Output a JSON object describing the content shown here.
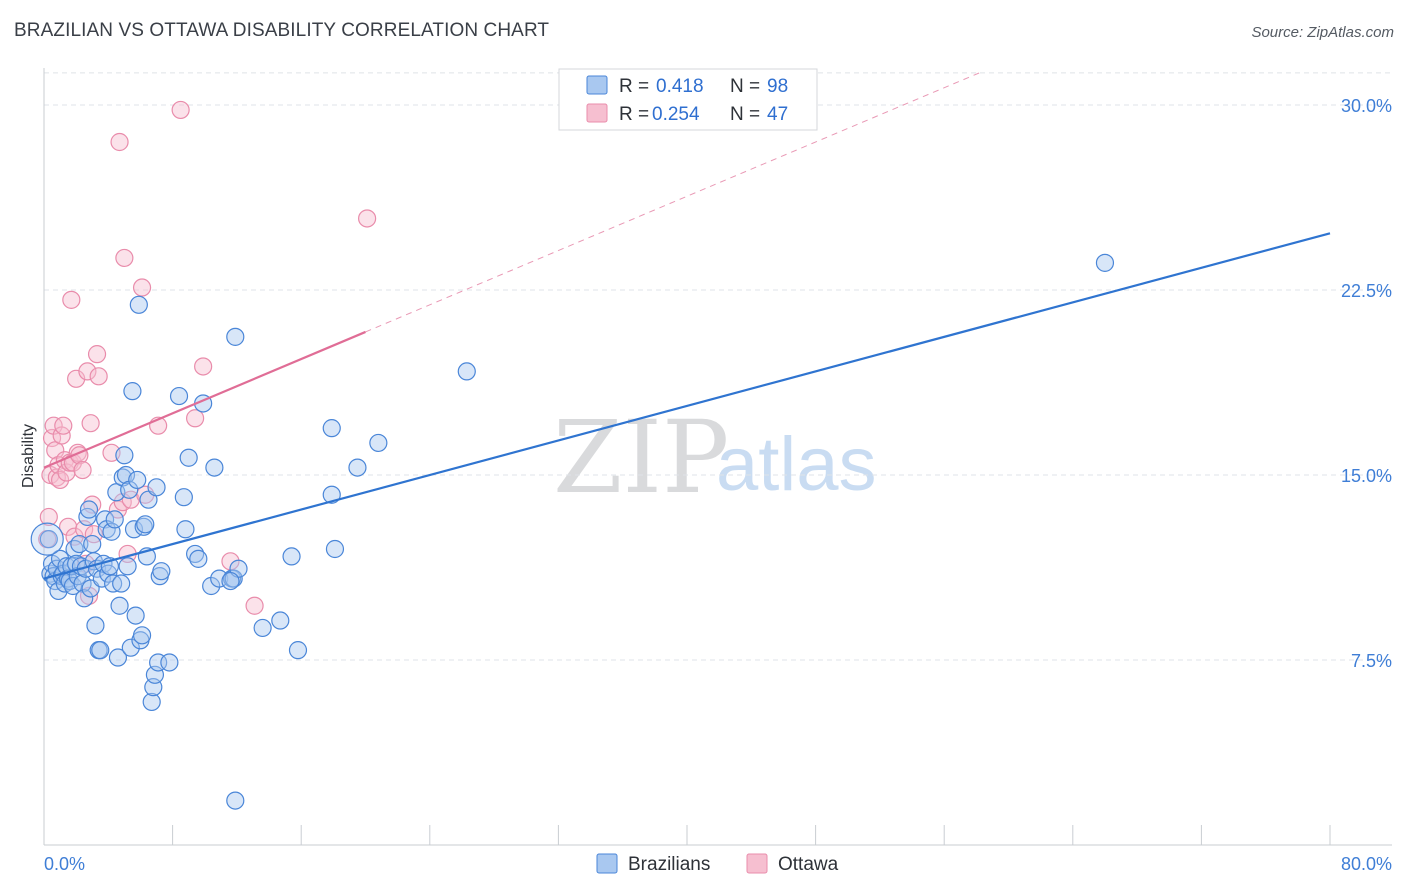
{
  "title": "BRAZILIAN VS OTTAWA DISABILITY CORRELATION CHART",
  "source": "Source: ZipAtlas.com",
  "watermark": {
    "zip": "ZIP",
    "atlas": "atlas"
  },
  "colors": {
    "blue": "#4a86d8",
    "blue_fill": "#a9c8f0",
    "blue_line": "#2f74d0",
    "pink": "#e98cab",
    "pink_fill": "#f6bfd0",
    "pink_line": "#e06d96",
    "grid": "#dfe3e8",
    "axis_text": "#3f7ed6"
  },
  "legend": {
    "rows": [
      {
        "r_label": "R =",
        "r_value": "0.418",
        "n_label": "N =",
        "n_value": "98"
      },
      {
        "r_label": "R =",
        "r_value": "0.254",
        "n_label": "N =",
        "n_value": "47"
      }
    ]
  },
  "bottom_legend": [
    "Brazilians",
    "Ottawa"
  ],
  "chart_data": {
    "type": "scatter",
    "title": "BRAZILIAN VS OTTAWA DISABILITY CORRELATION CHART",
    "xlabel": "",
    "ylabel": "Disability",
    "xlim": [
      0,
      80
    ],
    "ylim": [
      0,
      31.5
    ],
    "x_tick_labels": [
      "0.0%",
      "80.0%"
    ],
    "y_ticks": [
      7.5,
      15.0,
      22.5,
      30.0
    ],
    "y_tick_labels": [
      "7.5%",
      "15.0%",
      "22.5%",
      "30.0%"
    ],
    "series": [
      {
        "name": "Brazilians",
        "r": 0.418,
        "n": 98,
        "trend": {
          "x": [
            0,
            80
          ],
          "y": [
            10.8,
            24.8
          ]
        },
        "points": [
          [
            0.3,
            12.4
          ],
          [
            0.4,
            11.0
          ],
          [
            0.5,
            11.4
          ],
          [
            0.6,
            10.9
          ],
          [
            0.7,
            10.7
          ],
          [
            0.8,
            11.2
          ],
          [
            0.9,
            10.3
          ],
          [
            1.0,
            11.6
          ],
          [
            1.1,
            10.9
          ],
          [
            1.2,
            11.0
          ],
          [
            1.3,
            10.6
          ],
          [
            1.4,
            11.3
          ],
          [
            1.5,
            10.8
          ],
          [
            1.6,
            10.7
          ],
          [
            1.7,
            11.3
          ],
          [
            1.8,
            10.5
          ],
          [
            1.9,
            12.0
          ],
          [
            2.0,
            11.4
          ],
          [
            2.1,
            10.9
          ],
          [
            2.2,
            12.2
          ],
          [
            2.3,
            11.3
          ],
          [
            2.4,
            10.6
          ],
          [
            2.5,
            10.0
          ],
          [
            2.6,
            11.2
          ],
          [
            2.7,
            13.3
          ],
          [
            2.8,
            13.6
          ],
          [
            2.9,
            10.4
          ],
          [
            3.0,
            12.2
          ],
          [
            3.1,
            11.5
          ],
          [
            3.2,
            8.9
          ],
          [
            3.3,
            11.2
          ],
          [
            3.4,
            7.9
          ],
          [
            3.5,
            7.9
          ],
          [
            3.6,
            10.8
          ],
          [
            3.7,
            11.4
          ],
          [
            3.8,
            13.2
          ],
          [
            3.9,
            12.8
          ],
          [
            4.0,
            11.0
          ],
          [
            4.1,
            11.3
          ],
          [
            4.2,
            12.7
          ],
          [
            4.3,
            10.6
          ],
          [
            4.4,
            13.2
          ],
          [
            4.5,
            14.3
          ],
          [
            4.6,
            7.6
          ],
          [
            4.7,
            9.7
          ],
          [
            4.8,
            10.6
          ],
          [
            4.9,
            14.9
          ],
          [
            5.0,
            15.8
          ],
          [
            5.1,
            15.0
          ],
          [
            5.2,
            11.3
          ],
          [
            5.3,
            14.4
          ],
          [
            5.4,
            8.0
          ],
          [
            5.5,
            18.4
          ],
          [
            5.6,
            12.8
          ],
          [
            5.7,
            9.3
          ],
          [
            5.8,
            14.8
          ],
          [
            5.9,
            21.9
          ],
          [
            6.0,
            8.3
          ],
          [
            6.1,
            8.5
          ],
          [
            6.2,
            12.9
          ],
          [
            6.3,
            13.0
          ],
          [
            6.4,
            11.7
          ],
          [
            6.5,
            14.0
          ],
          [
            6.7,
            5.8
          ],
          [
            6.8,
            6.4
          ],
          [
            6.9,
            6.9
          ],
          [
            7.0,
            14.5
          ],
          [
            7.1,
            7.4
          ],
          [
            7.2,
            10.9
          ],
          [
            7.3,
            11.1
          ],
          [
            7.8,
            7.4
          ],
          [
            8.4,
            18.2
          ],
          [
            8.7,
            14.1
          ],
          [
            8.8,
            12.8
          ],
          [
            9.0,
            15.7
          ],
          [
            9.4,
            11.8
          ],
          [
            9.6,
            11.6
          ],
          [
            9.9,
            17.9
          ],
          [
            10.4,
            10.5
          ],
          [
            10.6,
            15.3
          ],
          [
            10.9,
            10.8
          ],
          [
            11.7,
            10.8
          ],
          [
            11.8,
            10.8
          ],
          [
            11.9,
            20.6
          ],
          [
            12.1,
            11.2
          ],
          [
            11.9,
            1.8
          ],
          [
            13.6,
            8.8
          ],
          [
            14.7,
            9.1
          ],
          [
            15.4,
            11.7
          ],
          [
            15.8,
            7.9
          ],
          [
            17.9,
            16.9
          ],
          [
            17.9,
            14.2
          ],
          [
            18.1,
            12.0
          ],
          [
            19.5,
            15.3
          ],
          [
            20.8,
            16.3
          ],
          [
            26.3,
            19.2
          ],
          [
            66.0,
            23.6
          ],
          [
            11.6,
            10.7
          ]
        ]
      },
      {
        "name": "Ottawa",
        "r": 0.254,
        "n": 47,
        "trend": {
          "x": [
            0,
            20
          ],
          "y": [
            15.3,
            20.8
          ]
        },
        "trend_extension": {
          "x": [
            20,
            80
          ],
          "y": [
            20.8,
            37.3
          ]
        },
        "points": [
          [
            0.2,
            12.4
          ],
          [
            0.3,
            13.3
          ],
          [
            0.4,
            15.0
          ],
          [
            0.5,
            16.5
          ],
          [
            0.6,
            17.0
          ],
          [
            0.7,
            16.0
          ],
          [
            0.8,
            14.9
          ],
          [
            0.9,
            15.4
          ],
          [
            1.0,
            14.8
          ],
          [
            1.1,
            16.6
          ],
          [
            1.2,
            17.0
          ],
          [
            1.3,
            15.6
          ],
          [
            1.4,
            15.1
          ],
          [
            1.5,
            12.9
          ],
          [
            1.6,
            15.5
          ],
          [
            1.7,
            22.1
          ],
          [
            1.8,
            15.5
          ],
          [
            1.9,
            12.5
          ],
          [
            2.0,
            18.9
          ],
          [
            2.1,
            15.9
          ],
          [
            2.2,
            15.8
          ],
          [
            2.4,
            15.2
          ],
          [
            2.5,
            12.8
          ],
          [
            2.6,
            11.4
          ],
          [
            2.7,
            19.2
          ],
          [
            2.8,
            10.1
          ],
          [
            2.9,
            17.1
          ],
          [
            3.0,
            13.8
          ],
          [
            3.1,
            12.6
          ],
          [
            3.3,
            19.9
          ],
          [
            3.4,
            19.0
          ],
          [
            4.2,
            15.9
          ],
          [
            4.6,
            13.6
          ],
          [
            4.7,
            28.5
          ],
          [
            4.9,
            13.9
          ],
          [
            5.0,
            23.8
          ],
          [
            5.2,
            11.8
          ],
          [
            5.4,
            14.0
          ],
          [
            6.1,
            22.6
          ],
          [
            6.3,
            14.2
          ],
          [
            7.1,
            17.0
          ],
          [
            8.5,
            29.8
          ],
          [
            9.4,
            17.3
          ],
          [
            9.9,
            19.4
          ],
          [
            11.6,
            11.5
          ],
          [
            13.1,
            9.7
          ],
          [
            20.1,
            25.4
          ]
        ]
      }
    ]
  }
}
